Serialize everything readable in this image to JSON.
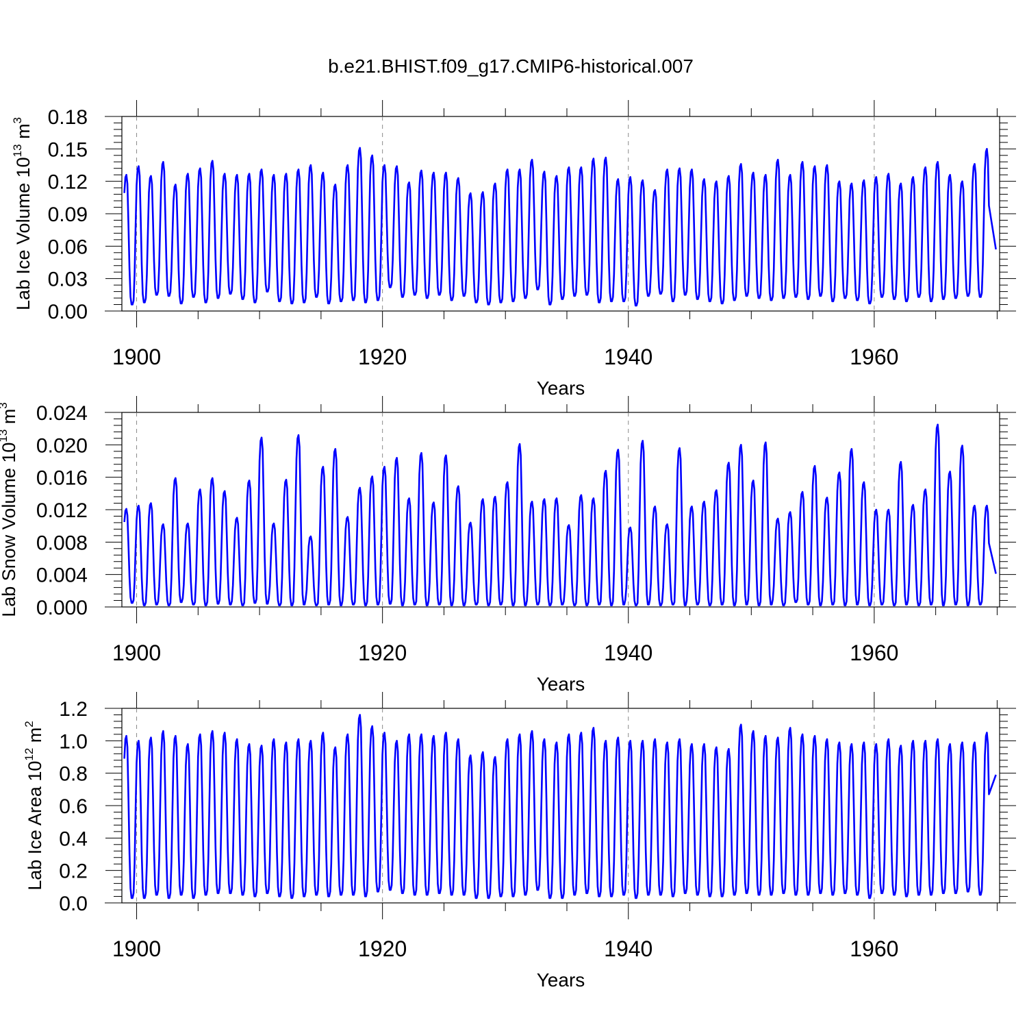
{
  "title": "b.e21.BHIST.f09_g17.CMIP6-historical.007",
  "colors": {
    "series": "#0000ff",
    "axis": "#000000",
    "gridline": "#888888",
    "background": "#ffffff"
  },
  "chart_data": [
    {
      "type": "line",
      "id": "ice-volume",
      "title": "",
      "xlabel": "Years",
      "ylabel_main": "Lab Ice Volume 10",
      "ylabel_sup": "13",
      "ylabel_unit": " m",
      "ylabel_unit_sup": "3",
      "xlim": [
        1898.8,
        1970.2
      ],
      "ylim": [
        0.0,
        0.18
      ],
      "xticks": [
        1900,
        1920,
        1940,
        1960
      ],
      "xtick_labels": [
        "1900",
        "1920",
        "1940",
        "1960"
      ],
      "yticks": [
        0.0,
        0.03,
        0.06,
        0.09,
        0.12,
        0.15,
        0.18
      ],
      "ytick_labels": [
        "0.00",
        "0.03",
        "0.06",
        "0.09",
        "0.12",
        "0.15",
        "0.18"
      ],
      "y_minor_step": 0.006,
      "reference_lines_x": [
        1900,
        1920,
        1940,
        1960
      ],
      "grid": false,
      "series": [
        {
          "name": "Lab Ice Volume",
          "x_start": 1899.0,
          "annual_peak": [
            0.126,
            0.134,
            0.125,
            0.138,
            0.117,
            0.127,
            0.132,
            0.139,
            0.127,
            0.126,
            0.127,
            0.131,
            0.126,
            0.127,
            0.131,
            0.135,
            0.128,
            0.117,
            0.135,
            0.151,
            0.144,
            0.135,
            0.134,
            0.119,
            0.13,
            0.128,
            0.128,
            0.123,
            0.109,
            0.11,
            0.118,
            0.131,
            0.131,
            0.14,
            0.129,
            0.125,
            0.133,
            0.133,
            0.141,
            0.142,
            0.122,
            0.124,
            0.121,
            0.112,
            0.131,
            0.132,
            0.131,
            0.122,
            0.12,
            0.125,
            0.136,
            0.128,
            0.126,
            0.14,
            0.126,
            0.138,
            0.134,
            0.135,
            0.12,
            0.118,
            0.121,
            0.124,
            0.127,
            0.118,
            0.124,
            0.133,
            0.138,
            0.126,
            0.12,
            0.136,
            0.15
          ],
          "annual_min": [
            0.006,
            0.008,
            0.015,
            0.014,
            0.007,
            0.013,
            0.008,
            0.012,
            0.016,
            0.011,
            0.008,
            0.018,
            0.009,
            0.007,
            0.008,
            0.013,
            0.007,
            0.009,
            0.01,
            0.008,
            0.01,
            0.022,
            0.013,
            0.015,
            0.012,
            0.015,
            0.01,
            0.014,
            0.008,
            0.006,
            0.008,
            0.009,
            0.012,
            0.02,
            0.006,
            0.011,
            0.014,
            0.015,
            0.008,
            0.009,
            0.009,
            0.005,
            0.014,
            0.016,
            0.009,
            0.015,
            0.011,
            0.009,
            0.007,
            0.01,
            0.014,
            0.012,
            0.01,
            0.012,
            0.013,
            0.011,
            0.014,
            0.009,
            0.012,
            0.01,
            0.007,
            0.013,
            0.011,
            0.009,
            0.013,
            0.009,
            0.011,
            0.012,
            0.014,
            0.013,
            0.012
          ],
          "end_value": 0.057
        }
      ]
    },
    {
      "type": "line",
      "id": "snow-volume",
      "title": "",
      "xlabel": "Years",
      "ylabel_main": "Lab Snow Volume 10",
      "ylabel_sup": "13",
      "ylabel_unit": " m",
      "ylabel_unit_sup": "3",
      "xlim": [
        1898.8,
        1970.2
      ],
      "ylim": [
        0.0,
        0.024
      ],
      "xticks": [
        1900,
        1920,
        1940,
        1960
      ],
      "xtick_labels": [
        "1900",
        "1920",
        "1940",
        "1960"
      ],
      "yticks": [
        0.0,
        0.004,
        0.008,
        0.012,
        0.016,
        0.02,
        0.024
      ],
      "ytick_labels": [
        "0.000",
        "0.004",
        "0.008",
        "0.012",
        "0.016",
        "0.020",
        "0.024"
      ],
      "y_minor_step": 0.0008,
      "reference_lines_x": [
        1900,
        1920,
        1940,
        1960
      ],
      "grid": false,
      "series": [
        {
          "name": "Lab Snow Volume",
          "x_start": 1899.0,
          "annual_peak": [
            0.0121,
            0.0125,
            0.0128,
            0.0102,
            0.0159,
            0.0103,
            0.0145,
            0.0159,
            0.0143,
            0.011,
            0.0156,
            0.0209,
            0.0103,
            0.0157,
            0.0212,
            0.0087,
            0.0173,
            0.0195,
            0.0111,
            0.0147,
            0.0161,
            0.0173,
            0.0184,
            0.0134,
            0.019,
            0.0129,
            0.0187,
            0.0149,
            0.0104,
            0.0133,
            0.0136,
            0.0154,
            0.0201,
            0.013,
            0.0133,
            0.0134,
            0.0101,
            0.0138,
            0.0134,
            0.0168,
            0.0194,
            0.0098,
            0.0205,
            0.0124,
            0.0102,
            0.0196,
            0.0124,
            0.013,
            0.0144,
            0.0178,
            0.02,
            0.0156,
            0.0203,
            0.0109,
            0.0117,
            0.0142,
            0.0174,
            0.0135,
            0.0166,
            0.0195,
            0.0154,
            0.012,
            0.012,
            0.0179,
            0.0126,
            0.0145,
            0.0225,
            0.0167,
            0.0199,
            0.0125,
            0.0125
          ],
          "annual_min": [
            0.0005,
            0.0002,
            0.0003,
            0.0002,
            0.0006,
            0.0003,
            0.0002,
            0.0004,
            0.0003,
            0.0002,
            0.0005,
            0.0004,
            0.0002,
            0.0002,
            0.0003,
            0.0002,
            0.0003,
            0.0002,
            0.0003,
            0.0002,
            0.0003,
            0.0004,
            0.0002,
            0.0003,
            0.0002,
            0.0003,
            0.0002,
            0.0002,
            0.0003,
            0.0002,
            0.0003,
            0.0002,
            0.0002,
            0.0003,
            0.0002,
            0.0003,
            0.0002,
            0.0002,
            0.0003,
            0.0002,
            0.0003,
            0.0002,
            0.0003,
            0.0002,
            0.0003,
            0.0002,
            0.0003,
            0.0002,
            0.0003,
            0.0002,
            0.0003,
            0.0002,
            0.0003,
            0.0002,
            0.0006,
            0.0003,
            0.0002,
            0.0003,
            0.0002,
            0.0003,
            0.0002,
            0.0003,
            0.0002,
            0.0003,
            0.0002,
            0.0003,
            0.0002,
            0.0003,
            0.0002,
            0.0003,
            0.0003
          ],
          "end_value": 0.0041
        }
      ]
    },
    {
      "type": "line",
      "id": "ice-area",
      "title": "",
      "xlabel": "Years",
      "ylabel_main": "Lab Ice Area 10",
      "ylabel_sup": "12",
      "ylabel_unit": " m",
      "ylabel_unit_sup": "2",
      "xlim": [
        1898.8,
        1970.2
      ],
      "ylim": [
        0.0,
        1.2
      ],
      "xticks": [
        1900,
        1920,
        1940,
        1960
      ],
      "xtick_labels": [
        "1900",
        "1920",
        "1940",
        "1960"
      ],
      "yticks": [
        0.0,
        0.2,
        0.4,
        0.6,
        0.8,
        1.0,
        1.2
      ],
      "ytick_labels": [
        "0.0",
        "0.2",
        "0.4",
        "0.6",
        "0.8",
        "1.0",
        "1.2"
      ],
      "y_minor_step": 0.04,
      "reference_lines_x": [
        1900,
        1920,
        1940,
        1960
      ],
      "grid": false,
      "series": [
        {
          "name": "Lab Ice Area",
          "x_start": 1899.0,
          "annual_peak": [
            1.03,
            1.0,
            1.02,
            1.06,
            1.03,
            0.98,
            1.04,
            1.06,
            1.05,
            1.01,
            0.98,
            0.97,
            1.01,
            0.99,
            1.01,
            1.0,
            1.05,
            0.96,
            1.04,
            1.16,
            1.09,
            1.05,
            1.0,
            1.04,
            1.04,
            1.03,
            1.05,
            1.01,
            0.91,
            0.93,
            0.9,
            1.01,
            1.04,
            1.06,
            1.01,
            0.99,
            1.04,
            1.05,
            1.08,
            1.0,
            1.02,
            1.0,
            1.0,
            1.01,
            0.99,
            1.01,
            0.98,
            0.98,
            0.96,
            0.95,
            1.1,
            1.06,
            1.03,
            1.02,
            1.08,
            1.04,
            1.03,
            1.01,
            0.99,
            0.98,
            0.99,
            0.98,
            1.01,
            0.97,
            1.0,
            1.0,
            1.01,
            0.98,
            0.99,
            0.99,
            1.05
          ],
          "annual_min": [
            0.03,
            0.03,
            0.05,
            0.03,
            0.05,
            0.03,
            0.05,
            0.06,
            0.06,
            0.05,
            0.04,
            0.06,
            0.04,
            0.03,
            0.04,
            0.05,
            0.04,
            0.05,
            0.05,
            0.04,
            0.07,
            0.08,
            0.06,
            0.05,
            0.05,
            0.06,
            0.05,
            0.05,
            0.03,
            0.03,
            0.04,
            0.04,
            0.05,
            0.08,
            0.03,
            0.03,
            0.05,
            0.06,
            0.04,
            0.04,
            0.05,
            0.03,
            0.05,
            0.05,
            0.04,
            0.06,
            0.05,
            0.04,
            0.04,
            0.05,
            0.06,
            0.05,
            0.05,
            0.06,
            0.05,
            0.05,
            0.06,
            0.05,
            0.06,
            0.05,
            0.03,
            0.06,
            0.05,
            0.04,
            0.05,
            0.05,
            0.06,
            0.06,
            0.07,
            0.05,
            0.05
          ],
          "end_value": 0.79
        }
      ]
    }
  ]
}
